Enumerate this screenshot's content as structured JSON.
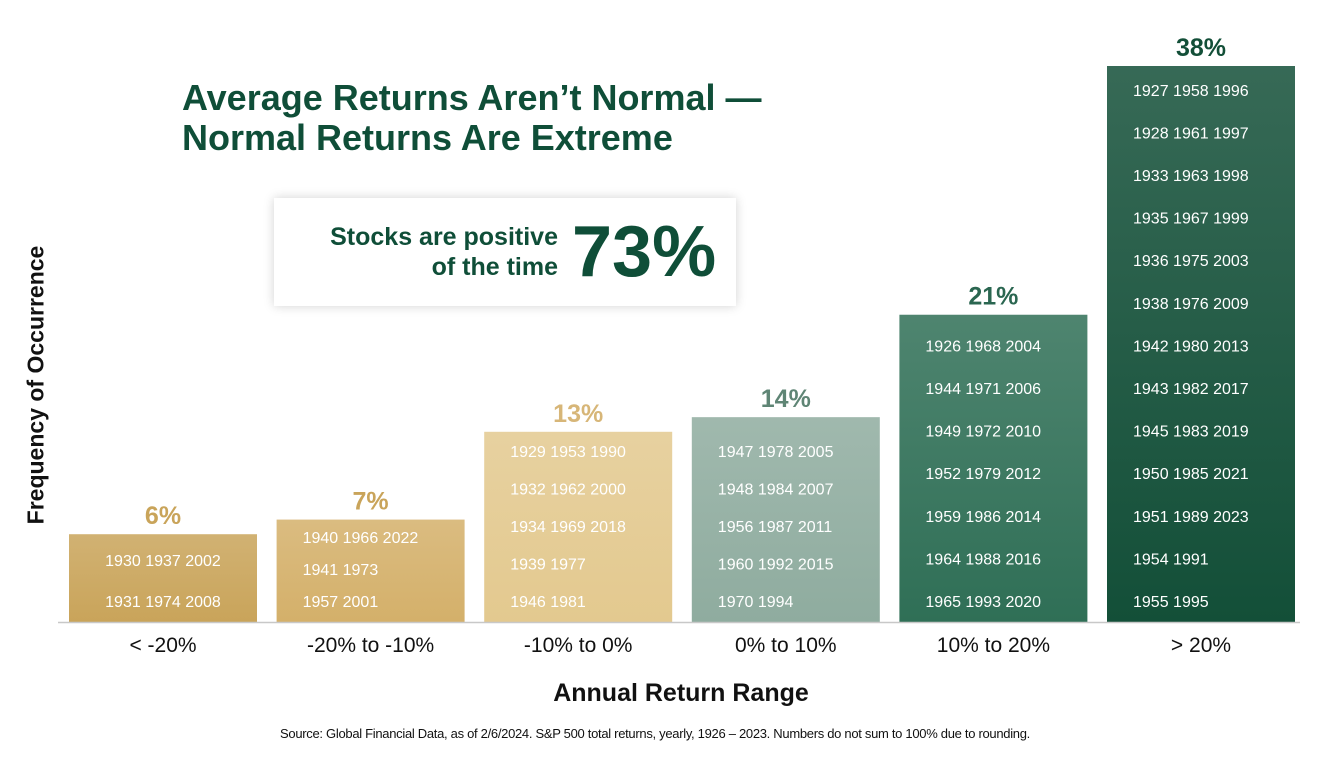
{
  "title_lines": [
    "Average Returns Aren’t Normal —",
    "Normal Returns Are Extreme"
  ],
  "callout": {
    "line1": "Stocks are positive",
    "line2": "of the time",
    "value": "73%"
  },
  "source": "Source: Global Financial Data, as of 2/6/2024. S&P 500 total returns, yearly, 1926 – 2023. Numbers do not sum to 100% due to rounding.",
  "chart_data": {
    "type": "bar",
    "xlabel": "Annual Return Range",
    "ylabel": "Frequency of Occurrence",
    "categories": [
      "< -20%",
      "-20% to -10%",
      "-10% to 0%",
      "0% to 10%",
      "10% to 20%",
      "> 20%"
    ],
    "values": [
      6,
      7,
      13,
      14,
      21,
      38
    ],
    "value_labels": [
      "6%",
      "7%",
      "13%",
      "14%",
      "21%",
      "38%"
    ],
    "ylim": [
      0,
      38
    ],
    "grid": false,
    "bar_colors": [
      "#c9a45a",
      "#d4b06a",
      "#e3c98f",
      "#8fac9f",
      "#2f6f56",
      "#134f38"
    ],
    "label_colors": [
      "#c9a45a",
      "#c9a45a",
      "#d7b678",
      "#5f8575",
      "#2a6650",
      "#134f38"
    ],
    "years": [
      [
        "1930 1937 2002",
        "1931 1974 2008"
      ],
      [
        "1940 1966 2022",
        "1941 1973",
        "1957 2001"
      ],
      [
        "1929 1953 1990",
        "1932 1962 2000",
        "1934 1969 2018",
        "1939 1977",
        "1946 1981"
      ],
      [
        "1947 1978 2005",
        "1948 1984 2007",
        "1956 1987 2011",
        "1960 1992 2015",
        "1970 1994"
      ],
      [
        "1926 1968 2004",
        "1944 1971 2006",
        "1949 1972 2010",
        "1952 1979 2012",
        "1959 1986 2014",
        "1964 1988 2016",
        "1965 1993 2020"
      ],
      [
        "1927 1958 1996",
        "1928 1961 1997",
        "1933 1963 1998",
        "1935 1967 1999",
        "1936 1975 2003",
        "1938 1976 2009",
        "1942 1980 2013",
        "1943 1982 2017",
        "1945 1983 2019",
        "1950 1985 2021",
        "1951 1989 2023",
        "1954 1991",
        "1955 1995"
      ]
    ]
  }
}
